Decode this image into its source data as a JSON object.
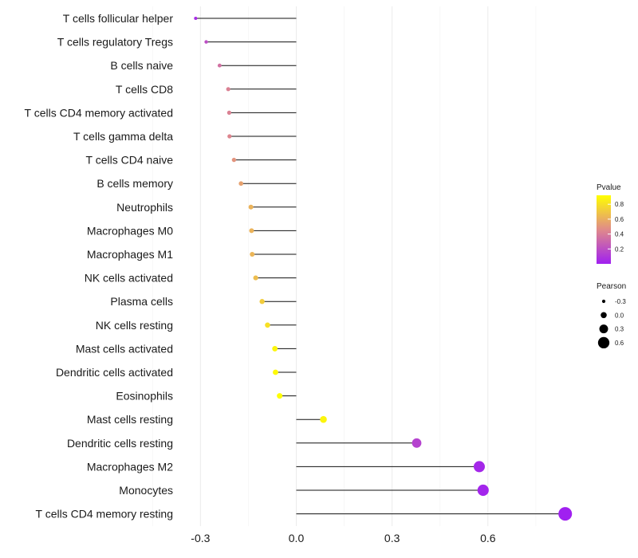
{
  "chart_data": {
    "type": "lollipop",
    "title": "",
    "xlabel": "",
    "ylabel": "",
    "xlim": [
      -0.33,
      0.86
    ],
    "xticks": [
      -0.3,
      0.0,
      0.3,
      0.6
    ],
    "xtick_labels": [
      "-0.3",
      "0.0",
      "0.3",
      "0.6"
    ],
    "grid": "vertical-minor-and-major",
    "categories": [
      "T cells follicular helper",
      "T cells regulatory  Tregs",
      "B cells naive",
      "T cells CD8",
      "T cells CD4 memory activated",
      "T cells gamma delta",
      "T cells CD4 naive",
      "B cells memory",
      "Neutrophils",
      "Macrophages M0",
      "Macrophages M1",
      "NK cells activated",
      "Plasma cells",
      "NK cells resting",
      "Mast cells activated",
      "Dendritic cells activated",
      "Eosinophils",
      "Mast cells resting",
      "Dendritic cells resting",
      "Macrophages M2",
      "Monocytes",
      "T cells CD4 memory resting"
    ],
    "pearson": [
      -0.315,
      -0.282,
      -0.24,
      -0.213,
      -0.21,
      -0.209,
      -0.195,
      -0.173,
      -0.142,
      -0.14,
      -0.138,
      -0.127,
      -0.107,
      -0.09,
      -0.067,
      -0.065,
      -0.052,
      0.085,
      0.377,
      0.573,
      0.585,
      0.842
    ],
    "pvalue": [
      0.05,
      0.2,
      0.35,
      0.42,
      0.42,
      0.44,
      0.5,
      0.55,
      0.62,
      0.62,
      0.63,
      0.66,
      0.72,
      0.8,
      0.88,
      0.9,
      0.92,
      0.88,
      0.15,
      0.03,
      0.02,
      0.0
    ],
    "legend_color": {
      "title": "Pvalue",
      "ticks": [
        "0.8",
        "0.6",
        "0.4",
        "0.2"
      ],
      "tick_values": [
        0.8,
        0.6,
        0.4,
        0.2
      ],
      "range": [
        0.0,
        0.92
      ],
      "low_color": "#a020f0",
      "mid_color": "#e08a8a",
      "high_color": "#ffff00",
      "position": "right"
    },
    "legend_size": {
      "title": "Pearson",
      "labels": [
        "-0.3",
        "0.0",
        "0.3",
        "0.6"
      ],
      "values": [
        -0.3,
        0.0,
        0.3,
        0.6
      ],
      "position": "right"
    }
  }
}
